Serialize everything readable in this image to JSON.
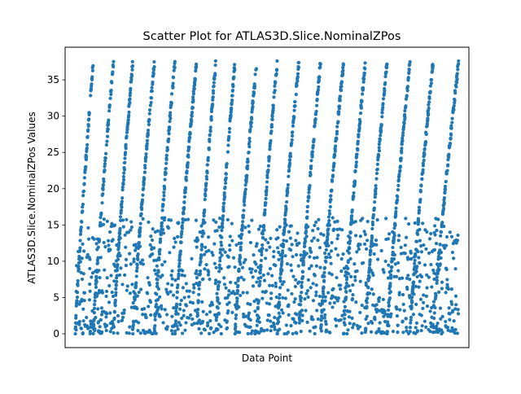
{
  "chart_data": {
    "type": "scatter",
    "title": "Scatter Plot for ATLAS3D.Slice.NominalZPos",
    "xlabel": "Data Point",
    "ylabel": "ATLAS3D.Slice.NominalZPos Values",
    "ylim": [
      -1.9,
      39.5
    ],
    "yticks": [
      0,
      5,
      10,
      15,
      20,
      25,
      30,
      35
    ],
    "x_ticks_shown": false,
    "grid": false,
    "legend": "none",
    "marker_color": "#1f77b4",
    "point_count": 3000,
    "y_max": 37.6,
    "x_range": [
      0,
      3000
    ],
    "sweep_starts": [
      0,
      140,
      300,
      450,
      620,
      780,
      950,
      1100,
      1250,
      1420,
      1580,
      1750,
      1920,
      2100,
      2270,
      2440,
      2620,
      2800,
      3000
    ]
  }
}
